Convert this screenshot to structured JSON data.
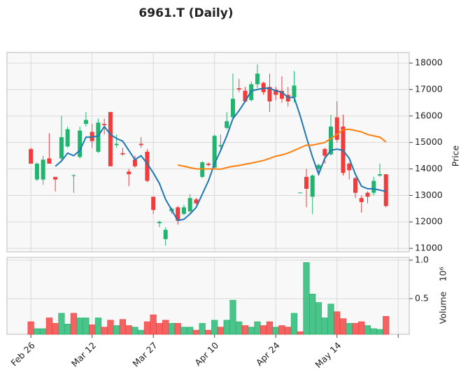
{
  "chart_data": {
    "type": "candlestick",
    "title": "6961.T (Daily)",
    "categories": [
      "Feb 26",
      null,
      null,
      null,
      null,
      null,
      null,
      null,
      null,
      null,
      "Mar 12",
      null,
      null,
      null,
      null,
      null,
      null,
      null,
      null,
      null,
      "Mar 27",
      null,
      null,
      null,
      null,
      null,
      null,
      null,
      null,
      null,
      "Apr 10",
      null,
      null,
      null,
      null,
      null,
      null,
      null,
      null,
      null,
      "Apr 24",
      null,
      null,
      null,
      null,
      null,
      null,
      null,
      null,
      null,
      "May 14",
      null,
      null,
      null,
      null,
      null,
      null,
      null,
      null
    ],
    "xticks": [
      0,
      10,
      20,
      30,
      40,
      50,
      60
    ],
    "xlim": [
      -3.9,
      61.8
    ],
    "open": [
      14750,
      13600,
      13600,
      14400,
      13700,
      14400,
      14850,
      13750,
      14450,
      15700,
      15400,
      14650,
      15700,
      16150,
      14900,
      14600,
      13900,
      14350,
      14950,
      14650,
      12950,
      11950,
      11350,
      12400,
      12550,
      12300,
      12400,
      12850,
      13700,
      14200,
      14050,
      14850,
      15550,
      15950,
      17050,
      16950,
      16600,
      17200,
      17250,
      17100,
      17000,
      16950,
      16800,
      16700,
      13100,
      13700,
      12950,
      14000,
      14750,
      14550,
      15950,
      15600,
      14200,
      13650,
      12900,
      13100,
      13100,
      13750,
      13800
    ],
    "high": [
      14800,
      14250,
      14500,
      15350,
      13700,
      16000,
      15600,
      13800,
      15600,
      16150,
      15700,
      15900,
      15900,
      16150,
      15300,
      14800,
      14000,
      14500,
      15200,
      14750,
      12950,
      12050,
      11800,
      12550,
      12600,
      12650,
      13050,
      12900,
      14300,
      14250,
      15300,
      15300,
      16150,
      17600,
      17400,
      17100,
      17300,
      17950,
      17300,
      17600,
      17100,
      17500,
      17100,
      17700,
      13100,
      14000,
      13800,
      14200,
      14800,
      16050,
      16550,
      16050,
      14250,
      13700,
      13000,
      13150,
      13700,
      14200,
      13800
    ],
    "low": [
      14200,
      13550,
      13400,
      14200,
      13150,
      14300,
      14800,
      13100,
      14400,
      15600,
      14800,
      14600,
      15300,
      14100,
      14800,
      14500,
      13350,
      14050,
      14800,
      13500,
      12300,
      11800,
      11100,
      12300,
      11900,
      12250,
      12350,
      12650,
      13650,
      14100,
      14000,
      14700,
      15500,
      15850,
      16900,
      16500,
      16550,
      17050,
      16800,
      16150,
      16600,
      16500,
      16350,
      16500,
      13100,
      12550,
      12300,
      13900,
      14200,
      14500,
      15000,
      13750,
      13600,
      12900,
      12350,
      12700,
      13000,
      13700,
      12550
    ],
    "close": [
      14200,
      14200,
      14350,
      14200,
      13600,
      15200,
      15500,
      13760,
      15450,
      15850,
      15050,
      15750,
      15650,
      14100,
      14950,
      14550,
      13800,
      14100,
      14900,
      13550,
      12450,
      12000,
      11700,
      12500,
      12050,
      12550,
      12900,
      12700,
      14250,
      14150,
      15250,
      14900,
      15800,
      16650,
      17000,
      16550,
      17200,
      17600,
      16900,
      16550,
      16800,
      16650,
      16550,
      17150,
      13110,
      13250,
      13750,
      14150,
      14500,
      15600,
      15100,
      13850,
      13950,
      13100,
      12750,
      12950,
      13550,
      13800,
      12600
    ],
    "up_color": "#1fb56e",
    "down_color": "#f23c3c",
    "moving_averages": [
      {
        "color": "#1f77b4",
        "values": [
          null,
          null,
          null,
          null,
          14100,
          14300,
          14600,
          14500,
          14700,
          15200,
          15200,
          15250,
          15600,
          15300,
          15150,
          15050,
          14700,
          14350,
          14500,
          14200,
          13850,
          13450,
          12850,
          12450,
          12050,
          12100,
          12300,
          12550,
          13050,
          13550,
          14200,
          14700,
          15250,
          15900,
          16200,
          16550,
          16950,
          17000,
          17050,
          17050,
          16950,
          16900,
          16700,
          16700,
          16000,
          15200,
          14450,
          13800,
          14400,
          14700,
          14750,
          14700,
          14400,
          13800,
          13350,
          13250,
          13250,
          13200,
          13150
        ]
      },
      {
        "color": "#ff7f0e",
        "values": [
          null,
          null,
          null,
          null,
          null,
          null,
          null,
          null,
          null,
          null,
          null,
          null,
          null,
          null,
          null,
          null,
          null,
          null,
          null,
          null,
          null,
          null,
          null,
          null,
          14150,
          14100,
          14050,
          14000,
          14000,
          14000,
          14000,
          13990,
          14050,
          14100,
          14130,
          14180,
          14220,
          14270,
          14320,
          14400,
          14480,
          14530,
          14600,
          14700,
          14800,
          14900,
          14900,
          14950,
          15000,
          15150,
          15300,
          15480,
          15500,
          15450,
          15400,
          15300,
          15250,
          15200,
          15020
        ]
      }
    ],
    "ylabel": "Price",
    "ylim": [
      10870,
      18400
    ],
    "yticks": [
      11000,
      12000,
      13000,
      14000,
      15000,
      16000,
      17000,
      18000
    ],
    "volume": {
      "label": "Volume",
      "offset_label": "10⁶",
      "ylim": [
        0.036,
        1.036
      ],
      "yticks": [
        0.5,
        {
          "value": 1,
          "label": "1.0"
        }
      ],
      "values": [
        0.2,
        0.11,
        0.11,
        0.25,
        0.18,
        0.31,
        0.17,
        0.31,
        0.25,
        0.25,
        0.16,
        0.25,
        0.13,
        0.22,
        0.15,
        0.23,
        0.15,
        0.13,
        0.09,
        0.2,
        0.29,
        0.18,
        0.22,
        0.18,
        0.18,
        0.13,
        0.13,
        0.09,
        0.18,
        0.09,
        0.22,
        0.13,
        0.22,
        0.48,
        0.2,
        0.15,
        0.13,
        0.2,
        0.15,
        0.2,
        0.13,
        0.15,
        0.13,
        0.31,
        0.07,
        0.97,
        0.56,
        0.45,
        0.25,
        0.43,
        0.33,
        0.24,
        0.18,
        0.18,
        0.2,
        0.15,
        0.11,
        0.1,
        0.27
      ]
    },
    "grid": true
  }
}
